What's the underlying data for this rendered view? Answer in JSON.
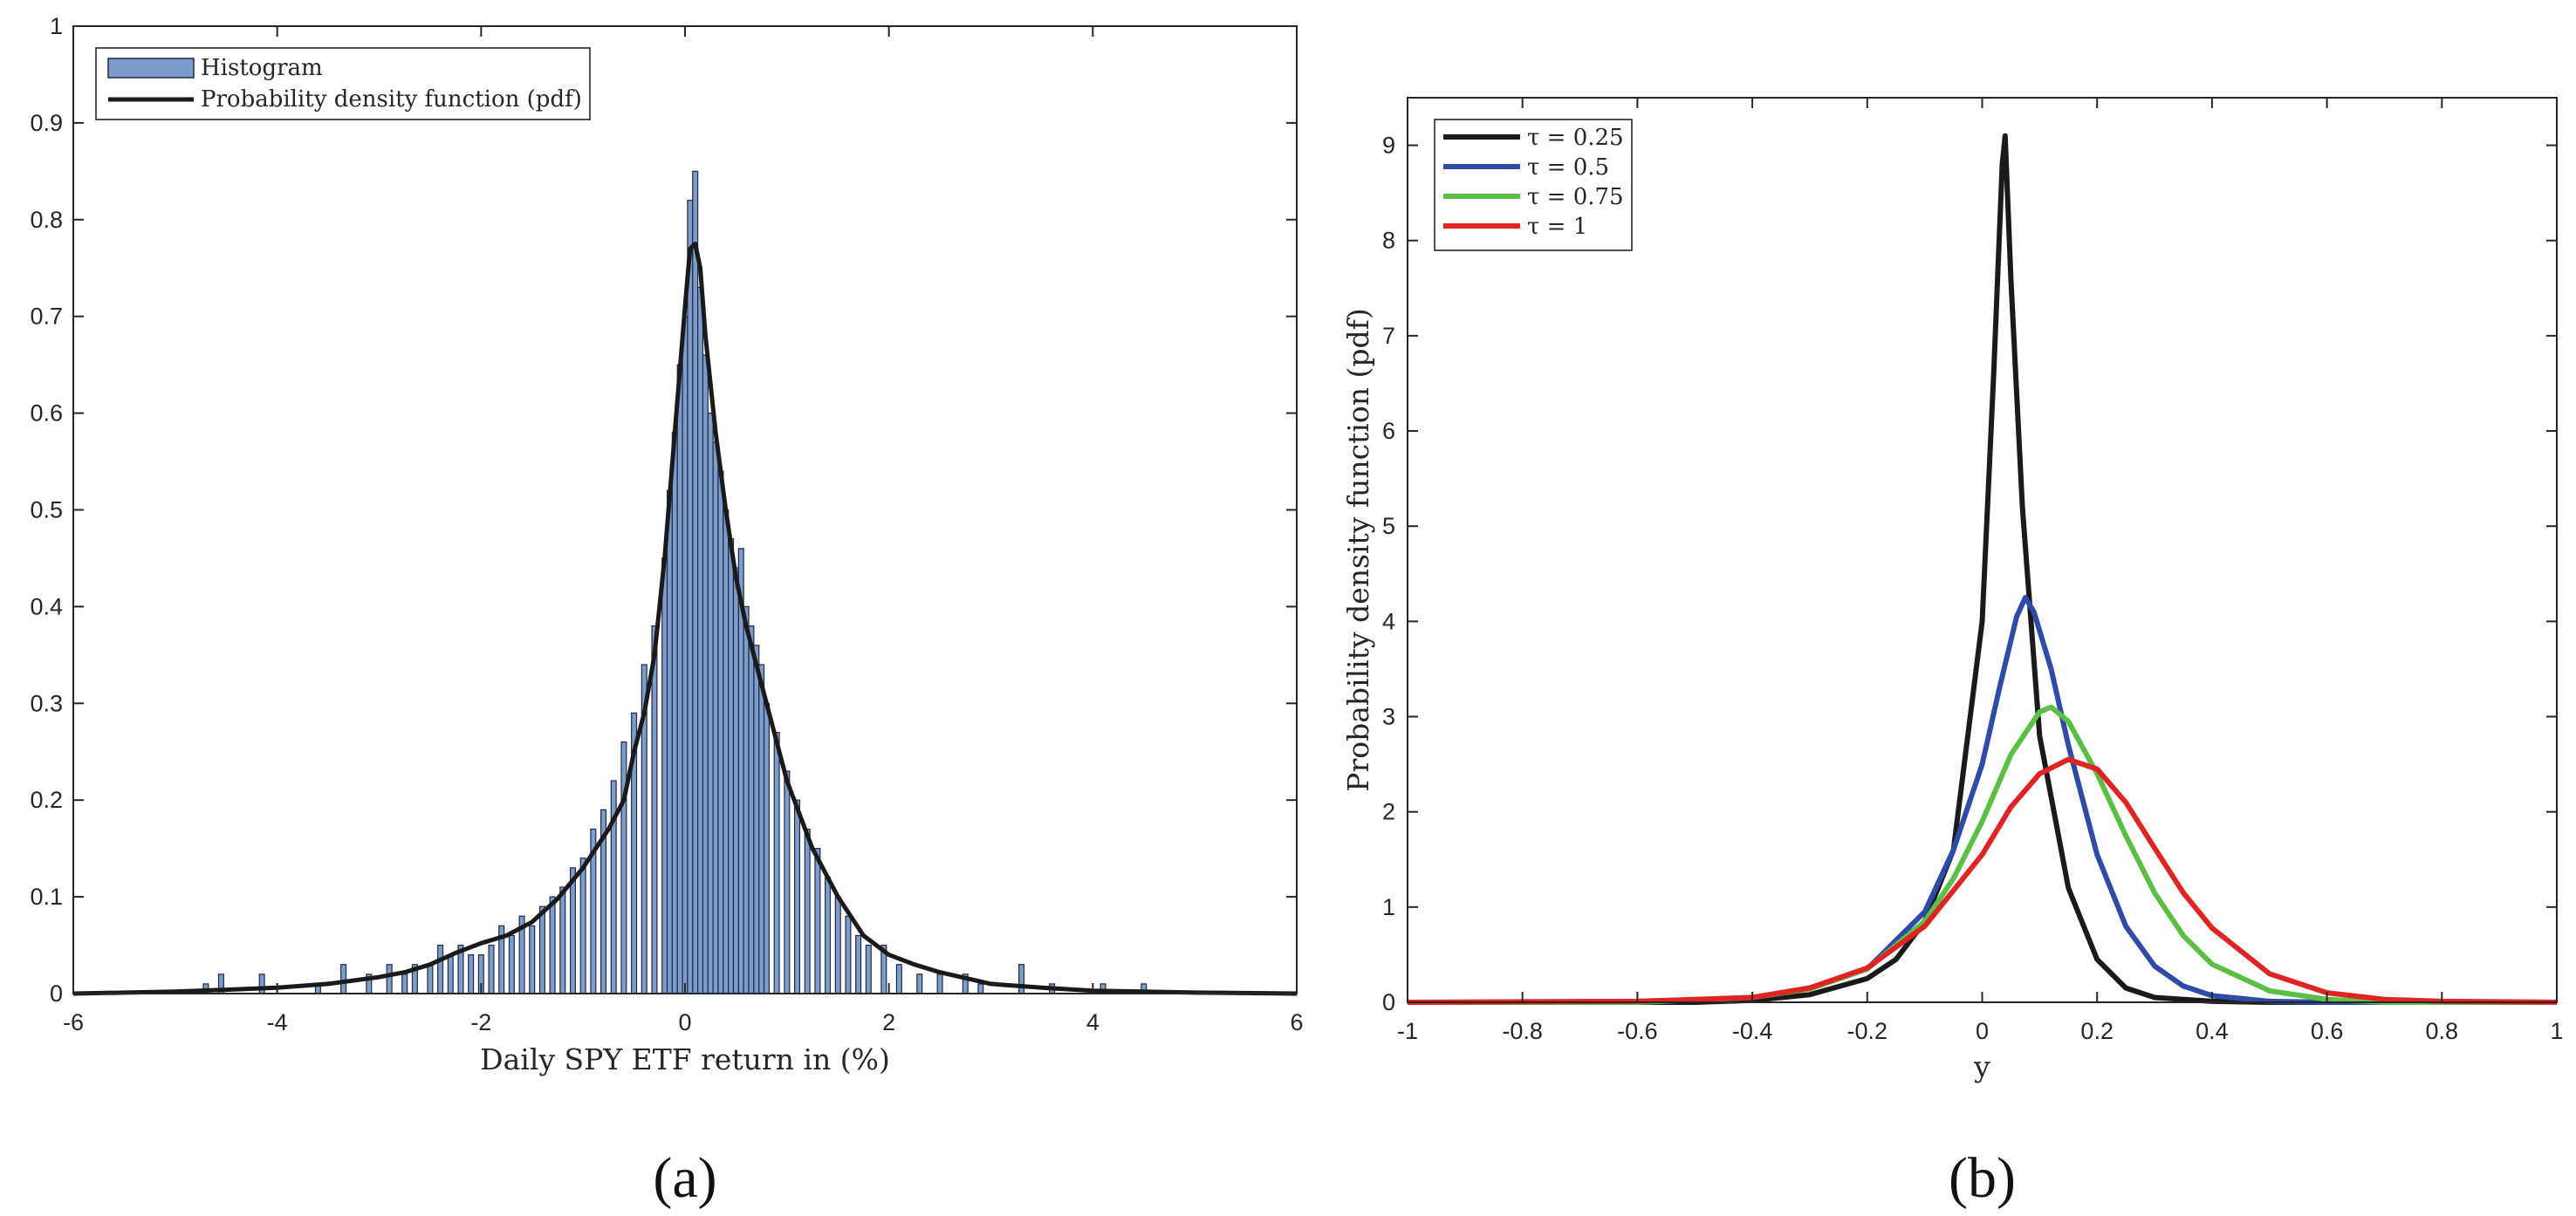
{
  "chart_data": [
    {
      "panel": "a",
      "caption": "(a)",
      "type": "bar",
      "xlabel": "Daily SPY ETF return in (%)",
      "ylabel": "",
      "xlim": [
        -6,
        6
      ],
      "ylim": [
        0,
        1
      ],
      "xticks": [
        "-6",
        "-4",
        "-2",
        "0",
        "2",
        "4",
        "6"
      ],
      "yticks": [
        "0",
        "0.1",
        "0.2",
        "0.3",
        "0.4",
        "0.5",
        "0.6",
        "0.7",
        "0.8",
        "0.9",
        "1"
      ],
      "grid": false,
      "legend_position": "top-left",
      "legend": [
        {
          "label": "Histogram",
          "kind": "bar",
          "color": "#7c9ccc"
        },
        {
          "label": "Probability density function (pdf)",
          "kind": "line",
          "color": "#1a1a1a"
        }
      ],
      "histogram": {
        "bin_width": 0.05,
        "color": "#7c9ccc",
        "edge_color": "#1f2a44",
        "bins": [
          {
            "x": -4.7,
            "y": 0.01
          },
          {
            "x": -4.55,
            "y": 0.02
          },
          {
            "x": -4.15,
            "y": 0.02
          },
          {
            "x": -3.6,
            "y": 0.01
          },
          {
            "x": -3.35,
            "y": 0.03
          },
          {
            "x": -3.1,
            "y": 0.02
          },
          {
            "x": -2.9,
            "y": 0.03
          },
          {
            "x": -2.75,
            "y": 0.02
          },
          {
            "x": -2.65,
            "y": 0.03
          },
          {
            "x": -2.5,
            "y": 0.03
          },
          {
            "x": -2.4,
            "y": 0.05
          },
          {
            "x": -2.3,
            "y": 0.04
          },
          {
            "x": -2.2,
            "y": 0.05
          },
          {
            "x": -2.1,
            "y": 0.04
          },
          {
            "x": -2.0,
            "y": 0.04
          },
          {
            "x": -1.9,
            "y": 0.05
          },
          {
            "x": -1.8,
            "y": 0.07
          },
          {
            "x": -1.7,
            "y": 0.06
          },
          {
            "x": -1.6,
            "y": 0.08
          },
          {
            "x": -1.5,
            "y": 0.07
          },
          {
            "x": -1.4,
            "y": 0.09
          },
          {
            "x": -1.3,
            "y": 0.1
          },
          {
            "x": -1.2,
            "y": 0.11
          },
          {
            "x": -1.1,
            "y": 0.13
          },
          {
            "x": -1.0,
            "y": 0.14
          },
          {
            "x": -0.9,
            "y": 0.17
          },
          {
            "x": -0.8,
            "y": 0.19
          },
          {
            "x": -0.7,
            "y": 0.22
          },
          {
            "x": -0.6,
            "y": 0.26
          },
          {
            "x": -0.5,
            "y": 0.29
          },
          {
            "x": -0.4,
            "y": 0.34
          },
          {
            "x": -0.3,
            "y": 0.38
          },
          {
            "x": -0.2,
            "y": 0.45
          },
          {
            "x": -0.15,
            "y": 0.52
          },
          {
            "x": -0.1,
            "y": 0.58
          },
          {
            "x": -0.05,
            "y": 0.65
          },
          {
            "x": 0.0,
            "y": 0.7
          },
          {
            "x": 0.05,
            "y": 0.82
          },
          {
            "x": 0.1,
            "y": 0.85
          },
          {
            "x": 0.15,
            "y": 0.73
          },
          {
            "x": 0.2,
            "y": 0.66
          },
          {
            "x": 0.25,
            "y": 0.6
          },
          {
            "x": 0.3,
            "y": 0.57
          },
          {
            "x": 0.35,
            "y": 0.54
          },
          {
            "x": 0.4,
            "y": 0.5
          },
          {
            "x": 0.45,
            "y": 0.47
          },
          {
            "x": 0.5,
            "y": 0.44
          },
          {
            "x": 0.55,
            "y": 0.46
          },
          {
            "x": 0.6,
            "y": 0.4
          },
          {
            "x": 0.65,
            "y": 0.38
          },
          {
            "x": 0.7,
            "y": 0.36
          },
          {
            "x": 0.75,
            "y": 0.34
          },
          {
            "x": 0.8,
            "y": 0.3
          },
          {
            "x": 0.9,
            "y": 0.27
          },
          {
            "x": 1.0,
            "y": 0.23
          },
          {
            "x": 1.1,
            "y": 0.2
          },
          {
            "x": 1.2,
            "y": 0.17
          },
          {
            "x": 1.3,
            "y": 0.15
          },
          {
            "x": 1.4,
            "y": 0.12
          },
          {
            "x": 1.5,
            "y": 0.1
          },
          {
            "x": 1.6,
            "y": 0.08
          },
          {
            "x": 1.7,
            "y": 0.06
          },
          {
            "x": 1.8,
            "y": 0.05
          },
          {
            "x": 1.95,
            "y": 0.05
          },
          {
            "x": 2.1,
            "y": 0.03
          },
          {
            "x": 2.3,
            "y": 0.02
          },
          {
            "x": 2.5,
            "y": 0.02
          },
          {
            "x": 2.75,
            "y": 0.02
          },
          {
            "x": 2.9,
            "y": 0.01
          },
          {
            "x": 3.3,
            "y": 0.03
          },
          {
            "x": 3.6,
            "y": 0.01
          },
          {
            "x": 4.1,
            "y": 0.01
          },
          {
            "x": 4.5,
            "y": 0.01
          }
        ]
      },
      "series": [
        {
          "name": "Probability density function (pdf)",
          "kind": "line",
          "color": "#1a1a1a",
          "x": [
            -6,
            -5,
            -4.5,
            -4,
            -3.5,
            -3,
            -2.75,
            -2.5,
            -2.25,
            -2,
            -1.75,
            -1.5,
            -1.25,
            -1,
            -0.75,
            -0.6,
            -0.5,
            -0.4,
            -0.3,
            -0.2,
            -0.1,
            0,
            0.05,
            0.1,
            0.15,
            0.2,
            0.3,
            0.4,
            0.5,
            0.6,
            0.75,
            1,
            1.25,
            1.5,
            1.75,
            2,
            2.25,
            2.5,
            3,
            3.5,
            4,
            5,
            6
          ],
          "y": [
            0.0,
            0.002,
            0.004,
            0.006,
            0.01,
            0.017,
            0.022,
            0.03,
            0.042,
            0.052,
            0.06,
            0.074,
            0.098,
            0.13,
            0.17,
            0.2,
            0.25,
            0.29,
            0.35,
            0.45,
            0.58,
            0.71,
            0.77,
            0.775,
            0.75,
            0.68,
            0.58,
            0.5,
            0.43,
            0.38,
            0.32,
            0.22,
            0.15,
            0.1,
            0.06,
            0.04,
            0.03,
            0.022,
            0.01,
            0.006,
            0.003,
            0.001,
            0.0
          ]
        }
      ]
    },
    {
      "panel": "b",
      "caption": "(b)",
      "type": "line",
      "xlabel": "y",
      "ylabel": "Probability density function (pdf)",
      "xlim": [
        -1,
        1
      ],
      "ylim": [
        0,
        9.5
      ],
      "xticks": [
        "-1",
        "-0.8",
        "-0.6",
        "-0.4",
        "-0.2",
        "0",
        "0.2",
        "0.4",
        "0.6",
        "0.8",
        "1"
      ],
      "yticks": [
        "0",
        "1",
        "2",
        "3",
        "4",
        "5",
        "6",
        "7",
        "8",
        "9"
      ],
      "grid": false,
      "legend_position": "top-left",
      "series": [
        {
          "name": "τ = 0.25",
          "color": "#1a1a1a",
          "x": [
            -1,
            -0.5,
            -0.4,
            -0.3,
            -0.2,
            -0.15,
            -0.1,
            -0.05,
            0,
            0.02,
            0.035,
            0.04,
            0.05,
            0.07,
            0.1,
            0.15,
            0.2,
            0.25,
            0.3,
            0.4,
            0.5,
            1
          ],
          "y": [
            0,
            0.0,
            0.02,
            0.08,
            0.25,
            0.45,
            0.85,
            1.6,
            4.0,
            6.6,
            8.8,
            9.1,
            7.6,
            5.2,
            2.8,
            1.2,
            0.45,
            0.15,
            0.05,
            0.01,
            0.0,
            0
          ]
        },
        {
          "name": "τ = 0.5",
          "color": "#2f4ba8",
          "x": [
            -1,
            -0.6,
            -0.4,
            -0.3,
            -0.2,
            -0.1,
            -0.05,
            0,
            0.03,
            0.06,
            0.075,
            0.09,
            0.12,
            0.15,
            0.2,
            0.25,
            0.3,
            0.35,
            0.4,
            0.5,
            0.6,
            1
          ],
          "y": [
            0,
            0.0,
            0.05,
            0.15,
            0.35,
            0.95,
            1.6,
            2.5,
            3.3,
            4.05,
            4.25,
            4.1,
            3.5,
            2.7,
            1.55,
            0.8,
            0.38,
            0.17,
            0.07,
            0.01,
            0.0,
            0
          ]
        },
        {
          "name": "τ = 0.75",
          "color": "#5cbf45",
          "x": [
            -1,
            -0.6,
            -0.4,
            -0.3,
            -0.2,
            -0.1,
            -0.05,
            0,
            0.05,
            0.1,
            0.12,
            0.15,
            0.2,
            0.25,
            0.3,
            0.35,
            0.4,
            0.5,
            0.6,
            0.7,
            1
          ],
          "y": [
            0,
            0.0,
            0.05,
            0.14,
            0.35,
            0.85,
            1.3,
            1.9,
            2.6,
            3.05,
            3.1,
            2.95,
            2.4,
            1.75,
            1.15,
            0.7,
            0.4,
            0.12,
            0.03,
            0.0,
            0
          ]
        },
        {
          "name": "τ = 1",
          "color": "#e02424",
          "x": [
            -1,
            -0.6,
            -0.4,
            -0.3,
            -0.2,
            -0.1,
            0,
            0.05,
            0.1,
            0.15,
            0.2,
            0.25,
            0.3,
            0.35,
            0.4,
            0.5,
            0.6,
            0.7,
            0.8,
            1
          ],
          "y": [
            0,
            0.01,
            0.05,
            0.15,
            0.36,
            0.8,
            1.55,
            2.05,
            2.4,
            2.55,
            2.45,
            2.1,
            1.62,
            1.15,
            0.78,
            0.3,
            0.1,
            0.03,
            0.01,
            0
          ]
        }
      ]
    }
  ]
}
